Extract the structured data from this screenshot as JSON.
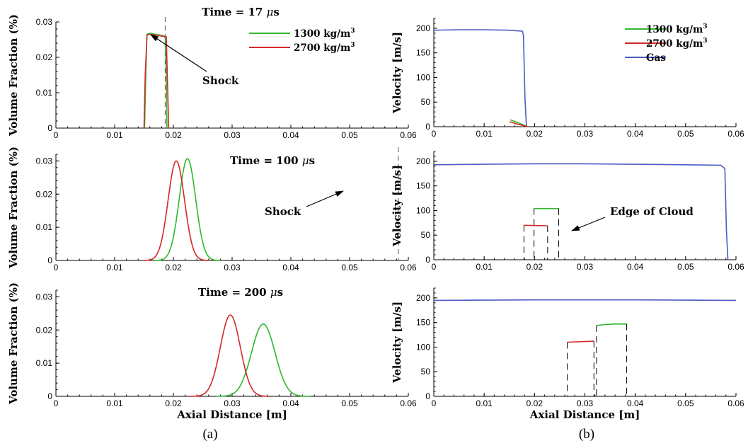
{
  "figure": {
    "caption_a": "(a)",
    "caption_b": "(b)"
  },
  "colors": {
    "green": "#2fb82f",
    "red": "#d42828",
    "blue": "#4a5cc4"
  },
  "chart_data": [
    {
      "id": "a1",
      "type": "line",
      "title": "Time = 17 μs",
      "xlabel": "",
      "ylabel": "Volume Fraction (%)",
      "xlim": [
        0,
        0.06
      ],
      "ylim": [
        0,
        0.03
      ],
      "xticks": [
        0,
        0.01,
        0.02,
        0.03,
        0.04,
        0.05,
        0.06
      ],
      "yticks": [
        0,
        0.01,
        0.02,
        0.03
      ],
      "legend": [
        "1300 kg/m3",
        "2700 kg/m3"
      ],
      "shock_x": 0.0186,
      "annotation": "Shock",
      "series": [
        {
          "name": "1300 kg/m3",
          "color": "green",
          "x": [
            0.0151,
            0.0153,
            0.0155,
            0.016,
            0.018,
            0.0186,
            0.0188,
            0.0189
          ],
          "y": [
            0,
            0.015,
            0.0265,
            0.0268,
            0.0262,
            0.026,
            0.015,
            0
          ]
        },
        {
          "name": "2700 kg/m3",
          "color": "red",
          "x": [
            0.015,
            0.0152,
            0.0155,
            0.016,
            0.018,
            0.0188,
            0.019,
            0.0192
          ],
          "y": [
            0,
            0.015,
            0.0263,
            0.0265,
            0.026,
            0.0258,
            0.013,
            0
          ]
        }
      ]
    },
    {
      "id": "a2",
      "type": "line",
      "title": "Time = 100 μs",
      "xlabel": "",
      "ylabel": "Volume Fraction (%)",
      "xlim": [
        0,
        0.06
      ],
      "ylim": [
        0,
        0.032
      ],
      "xticks": [
        0,
        0.01,
        0.02,
        0.03,
        0.04,
        0.05,
        0.06
      ],
      "yticks": [
        0,
        0.01,
        0.02,
        0.03
      ],
      "shock_x": 0.0583,
      "annotation": "Shock",
      "series": [
        {
          "name": "1300 kg/m3",
          "color": "green",
          "gauss": [
            0.0224,
            0.0014,
            0.0307
          ]
        },
        {
          "name": "2700 kg/m3",
          "color": "red",
          "gauss": [
            0.0205,
            0.0014,
            0.03
          ]
        }
      ]
    },
    {
      "id": "a3",
      "type": "line",
      "title": "Time = 200 μs",
      "xlabel": "Axial Distance [m]",
      "ylabel": "Volume Fraction (%)",
      "xlim": [
        0,
        0.06
      ],
      "ylim": [
        0,
        0.032
      ],
      "xticks": [
        0,
        0.01,
        0.02,
        0.03,
        0.04,
        0.05,
        0.06
      ],
      "yticks": [
        0,
        0.01,
        0.02,
        0.03
      ],
      "series": [
        {
          "name": "1300 kg/m3",
          "color": "green",
          "gauss": [
            0.0353,
            0.002,
            0.0218
          ]
        },
        {
          "name": "2700 kg/m3",
          "color": "red",
          "gauss": [
            0.0297,
            0.0017,
            0.0245
          ]
        }
      ]
    },
    {
      "id": "b1",
      "type": "line",
      "title": "",
      "xlabel": "",
      "ylabel": "Velocity [m/s]",
      "xlim": [
        0,
        0.06
      ],
      "ylim": [
        0,
        220
      ],
      "xticks": [
        0,
        0.01,
        0.02,
        0.03,
        0.04,
        0.05,
        0.06
      ],
      "yticks": [
        0,
        50,
        100,
        150,
        200
      ],
      "legend": [
        "1300 kg/m3",
        "2700 kg/m3",
        "Gas"
      ],
      "series": [
        {
          "name": "Gas",
          "color": "blue",
          "x": [
            0,
            0.005,
            0.01,
            0.015,
            0.0176,
            0.0178,
            0.0181,
            0.0184
          ],
          "y": [
            196,
            197,
            197,
            196,
            194,
            185,
            60,
            0
          ]
        },
        {
          "name": "1300 kg/m3",
          "color": "green",
          "x": [
            0.0152,
            0.017,
            0.0186
          ],
          "y": [
            14,
            7,
            0
          ]
        },
        {
          "name": "2700 kg/m3",
          "color": "red",
          "x": [
            0.015,
            0.017,
            0.0188
          ],
          "y": [
            10,
            4,
            0
          ]
        }
      ]
    },
    {
      "id": "b2",
      "type": "line",
      "title": "",
      "xlabel": "",
      "ylabel": "Velocity [m/s]",
      "xlim": [
        0,
        0.06
      ],
      "ylim": [
        0,
        220
      ],
      "xticks": [
        0,
        0.01,
        0.02,
        0.03,
        0.04,
        0.05,
        0.06
      ],
      "yticks": [
        0,
        50,
        100,
        150,
        200
      ],
      "annotation": "Edge of Cloud",
      "series": [
        {
          "name": "Gas",
          "color": "blue",
          "x": [
            0,
            0.01,
            0.02,
            0.03,
            0.04,
            0.05,
            0.057,
            0.0578,
            0.0581,
            0.0584
          ],
          "y": [
            193,
            194,
            195,
            195,
            194,
            193,
            192,
            185,
            60,
            0
          ]
        },
        {
          "name": "1300 kg/m3",
          "color": "green",
          "x": [
            0.0199,
            0.0248
          ],
          "y": [
            104,
            104
          ],
          "edges": [
            0.0199,
            0.0248
          ]
        },
        {
          "name": "2700 kg/m3",
          "color": "red",
          "x": [
            0.0179,
            0.0226
          ],
          "y": [
            70,
            69
          ],
          "edges": [
            0.0179,
            0.0226
          ]
        }
      ]
    },
    {
      "id": "b3",
      "type": "line",
      "title": "",
      "xlabel": "Axial Distance [m]",
      "ylabel": "Velocity [m/s]",
      "xlim": [
        0,
        0.06
      ],
      "ylim": [
        0,
        220
      ],
      "xticks": [
        0,
        0.01,
        0.02,
        0.03,
        0.04,
        0.05,
        0.06
      ],
      "yticks": [
        0,
        50,
        100,
        150,
        200
      ],
      "series": [
        {
          "name": "Gas",
          "color": "blue",
          "x": [
            0,
            0.02,
            0.04,
            0.06
          ],
          "y": [
            195,
            196,
            196,
            195
          ]
        },
        {
          "name": "1300 kg/m3",
          "color": "green",
          "x": [
            0.0323,
            0.034,
            0.036,
            0.0383
          ],
          "y": [
            144,
            146,
            147,
            147
          ],
          "edges": [
            0.0323,
            0.0383
          ]
        },
        {
          "name": "2700 kg/m3",
          "color": "red",
          "x": [
            0.0265,
            0.0318
          ],
          "y": [
            110,
            112
          ],
          "edges": [
            0.0265,
            0.0318
          ]
        }
      ]
    }
  ]
}
